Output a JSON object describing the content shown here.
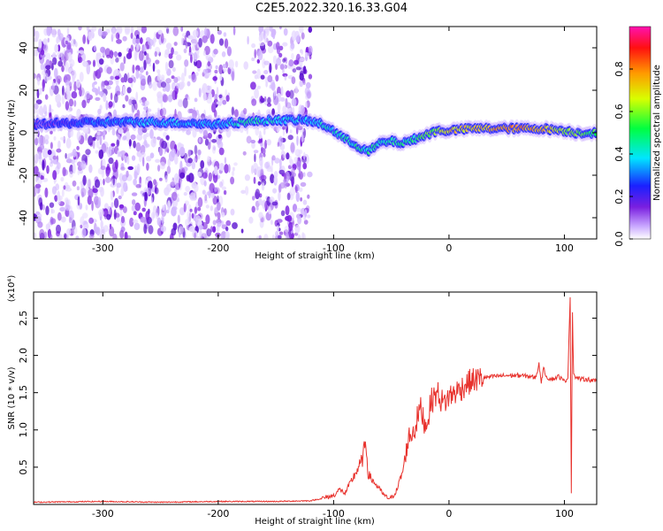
{
  "title": "C2E5.2022.320.16.33.G04",
  "chart_data": [
    {
      "type": "heatmap",
      "panel": "spectrogram",
      "xlabel": "Height of straight line (km)",
      "ylabel": "Frequency (Hz)",
      "xlim": [
        -360,
        128
      ],
      "ylim": [
        -50,
        50
      ],
      "xticks": [
        -300,
        -200,
        -100,
        0,
        100
      ],
      "yticks": [
        -40,
        -20,
        0,
        20,
        40
      ],
      "colorbar": {
        "label": "Normalized spectral amplitude",
        "range": [
          0.0,
          1.0
        ],
        "ticks": [
          0.0,
          0.2,
          0.4,
          0.6,
          0.8
        ],
        "colormap": "rainbow"
      },
      "ridge": {
        "x": [
          -360,
          -300,
          -250,
          -200,
          -180,
          -150,
          -125,
          -110,
          -100,
          -90,
          -80,
          -70,
          -60,
          -50,
          -40,
          -30,
          -20,
          -10,
          0,
          20,
          50,
          80,
          100,
          110,
          128
        ],
        "y": [
          4,
          5,
          5,
          4,
          5,
          6,
          6,
          4,
          1,
          -3,
          -6,
          -9,
          -5,
          -4,
          -5,
          -3,
          -1,
          1,
          1,
          2,
          2,
          2,
          1,
          0,
          0
        ],
        "amplitude": [
          0.15,
          0.3,
          0.35,
          0.35,
          0.45,
          0.4,
          0.35,
          0.4,
          0.4,
          0.45,
          0.45,
          0.45,
          0.45,
          0.45,
          0.45,
          0.45,
          0.6,
          0.6,
          0.7,
          0.7,
          0.8,
          0.75,
          0.6,
          0.6,
          0.5
        ]
      },
      "noise_region": {
        "x_from": -360,
        "x_to": -120
      }
    },
    {
      "type": "line",
      "panel": "snr",
      "xlabel": "Height of straight line (km)",
      "ylabel": "SNR (10 * v/v)",
      "y_multiplier": "(x10⁴)",
      "xlim": [
        -360,
        128
      ],
      "ylim": [
        0,
        2.85
      ],
      "xticks": [
        -300,
        -200,
        -100,
        0,
        100
      ],
      "yticks": [
        0.5,
        1.0,
        1.5,
        2.0,
        2.5
      ],
      "series": [
        {
          "color": "#e8322d",
          "x": [
            -360,
            -300,
            -250,
            -200,
            -150,
            -120,
            -110,
            -100,
            -95,
            -90,
            -85,
            -80,
            -75,
            -72,
            -70,
            -65,
            -60,
            -55,
            -50,
            -45,
            -40,
            -35,
            -30,
            -25,
            -20,
            -15,
            -10,
            -5,
            0,
            5,
            10,
            15,
            20,
            30,
            40,
            50,
            60,
            70,
            75,
            78,
            80,
            82,
            85,
            90,
            95,
            100,
            103,
            105,
            106,
            107,
            108,
            110,
            115,
            120,
            128
          ],
          "y": [
            0.03,
            0.04,
            0.03,
            0.04,
            0.04,
            0.05,
            0.08,
            0.12,
            0.2,
            0.15,
            0.3,
            0.45,
            0.6,
            0.85,
            0.4,
            0.3,
            0.2,
            0.1,
            0.08,
            0.2,
            0.45,
            0.9,
            1.0,
            1.3,
            1.05,
            1.4,
            1.5,
            1.35,
            1.45,
            1.5,
            1.55,
            1.62,
            1.66,
            1.7,
            1.72,
            1.73,
            1.73,
            1.72,
            1.7,
            1.88,
            1.65,
            1.82,
            1.7,
            1.68,
            1.72,
            1.65,
            1.7,
            2.8,
            0.15,
            2.6,
            1.75,
            1.7,
            1.68,
            1.68,
            1.65
          ]
        }
      ]
    }
  ]
}
